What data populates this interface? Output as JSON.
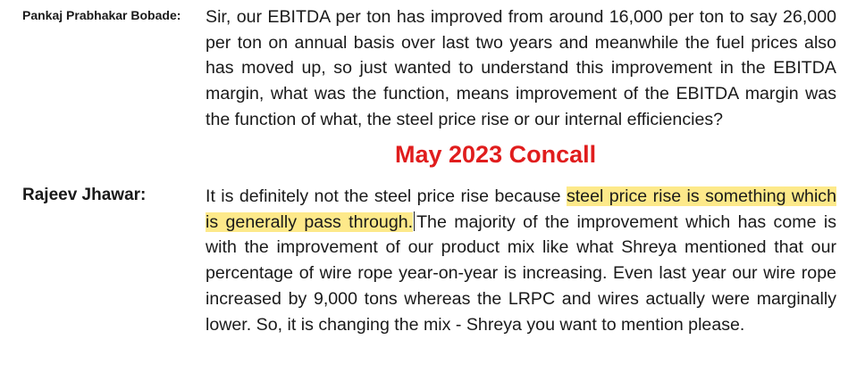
{
  "annotation": {
    "label": "May 2023 Concall",
    "color": "#e01d1d"
  },
  "highlight_color": "#fde98a",
  "turns": [
    {
      "speaker": "Pankaj Prabhakar Bobade:",
      "text": "Sir, our EBITDA per ton has improved from around 16,000 per ton to say 26,000 per ton on annual basis over last two years and meanwhile the fuel prices also has moved up, so just wanted to understand this improvement in the EBITDA margin, what was the function, means improvement of the EBITDA margin was the function of what, the steel price rise or our internal efficiencies?"
    },
    {
      "speaker": "Rajeev Jhawar:",
      "text_before": "It is definitely not the steel price rise because ",
      "text_highlighted": "steel price rise is something which is generally pass through.",
      "text_after": "The majority of the improvement which has come is with the improvement of our product mix like what Shreya mentioned that our percentage of wire rope year-on-year is increasing. Even last year our wire rope increased by 9,000 tons whereas the LRPC and wires actually were marginally lower. So, it is changing the mix - Shreya you want to mention please."
    }
  ]
}
